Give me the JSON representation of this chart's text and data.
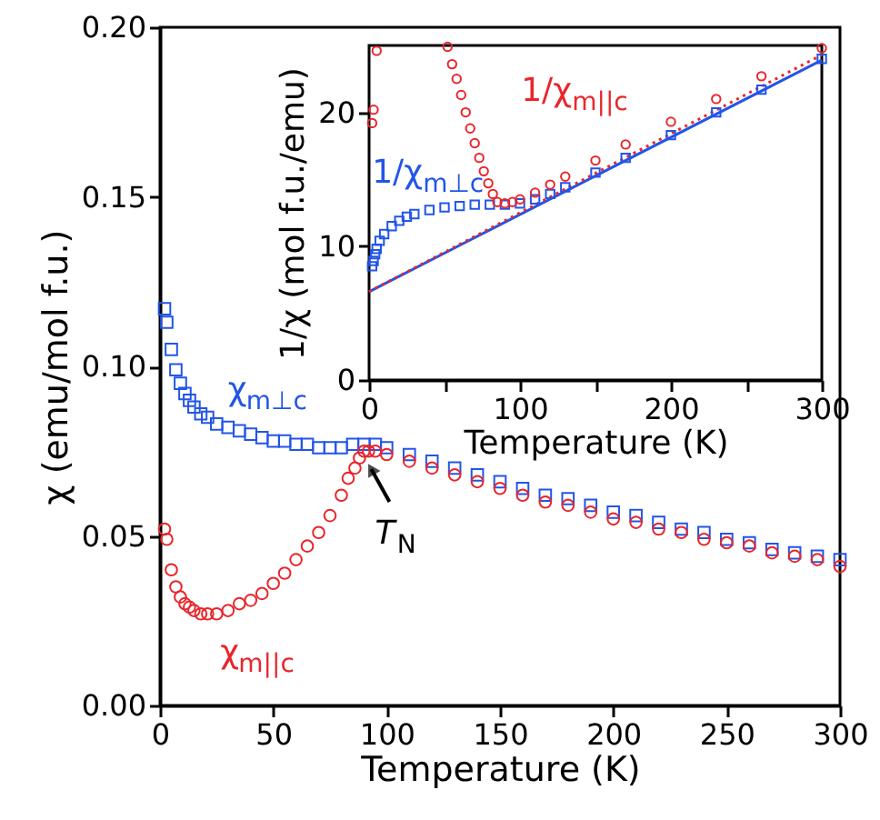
{
  "chart_data": [
    {
      "type": "scatter",
      "xlabel": "Temperature (K)",
      "ylabel": "χ (emu/mol f.u.)",
      "xlim": [
        0,
        300
      ],
      "ylim": [
        0,
        0.2
      ],
      "xticks": [
        0,
        50,
        100,
        150,
        200,
        250,
        300
      ],
      "yticks": [
        {
          "value": 0,
          "label": "0.00"
        },
        {
          "value": 0.05,
          "label": "0.05"
        },
        {
          "value": 0.1,
          "label": "0.10"
        },
        {
          "value": 0.15,
          "label": "0.15"
        },
        {
          "value": 0.2,
          "label": "0.20"
        }
      ],
      "grid": false,
      "legend": false,
      "series": [
        {
          "name": "χ$_{m⊥c}$",
          "color": "#2255e8",
          "marker": "square",
          "x": [
            2,
            3,
            5,
            7,
            9,
            11,
            13,
            15,
            18,
            21,
            25,
            30,
            35,
            40,
            45,
            50,
            55,
            60,
            65,
            70,
            75,
            80,
            85,
            90,
            95,
            100,
            110,
            120,
            130,
            140,
            150,
            160,
            170,
            180,
            190,
            200,
            210,
            220,
            230,
            240,
            250,
            260,
            270,
            280,
            290,
            300
          ],
          "values": [
            0.117,
            0.113,
            0.105,
            0.099,
            0.095,
            0.092,
            0.09,
            0.088,
            0.086,
            0.085,
            0.083,
            0.082,
            0.081,
            0.08,
            0.079,
            0.078,
            0.078,
            0.077,
            0.077,
            0.076,
            0.076,
            0.076,
            0.077,
            0.077,
            0.077,
            0.076,
            0.074,
            0.072,
            0.07,
            0.068,
            0.066,
            0.064,
            0.062,
            0.061,
            0.059,
            0.057,
            0.056,
            0.054,
            0.052,
            0.051,
            0.049,
            0.048,
            0.046,
            0.045,
            0.044,
            0.043
          ]
        },
        {
          "name": "χ$_{m||c}$",
          "color": "#e8262b",
          "marker": "circle",
          "x": [
            2,
            3,
            5,
            7,
            9,
            11,
            13,
            15,
            18,
            21,
            25,
            30,
            35,
            40,
            45,
            50,
            55,
            60,
            65,
            70,
            75,
            80,
            83,
            86,
            88,
            90,
            92,
            95,
            100,
            110,
            120,
            130,
            140,
            150,
            160,
            170,
            180,
            190,
            200,
            210,
            220,
            230,
            240,
            250,
            260,
            270,
            280,
            290,
            300
          ],
          "values": [
            0.052,
            0.049,
            0.04,
            0.035,
            0.032,
            0.03,
            0.029,
            0.028,
            0.027,
            0.027,
            0.027,
            0.028,
            0.03,
            0.031,
            0.033,
            0.036,
            0.039,
            0.043,
            0.047,
            0.051,
            0.056,
            0.062,
            0.067,
            0.07,
            0.073,
            0.075,
            0.075,
            0.075,
            0.074,
            0.072,
            0.07,
            0.068,
            0.066,
            0.064,
            0.062,
            0.06,
            0.059,
            0.057,
            0.055,
            0.054,
            0.052,
            0.051,
            0.049,
            0.048,
            0.047,
            0.045,
            0.044,
            0.043,
            0.041
          ]
        }
      ],
      "annotations": [
        {
          "text": "T$_{N}$",
          "x": 90,
          "y": 0.074
        }
      ]
    },
    {
      "type": "scatter",
      "xlabel": "Temperature (K)",
      "ylabel": "1/χ (mol f.u./emu)",
      "xlim": [
        0,
        300
      ],
      "ylim": [
        0,
        25
      ],
      "xticks": [
        0,
        {
          "value": 50,
          "label": null
        },
        100,
        {
          "value": 150,
          "label": null
        },
        200,
        {
          "value": 250,
          "label": null
        },
        300
      ],
      "yticks": [
        0,
        10,
        20
      ],
      "grid": false,
      "legend": false,
      "series": [
        {
          "type": "line",
          "color": "#2255e8",
          "line_style": "solid",
          "marker": "none",
          "x": [
            0,
            300
          ],
          "values": [
            6.6,
            23.9
          ]
        },
        {
          "type": "line",
          "color": "#e8262b",
          "line_style": "dotted",
          "marker": "none",
          "x": [
            0,
            300
          ],
          "values": [
            6.6,
            24.3
          ]
        },
        {
          "name": "1/χ$_{m⊥c}$",
          "color": "#2255e8",
          "marker": "square",
          "x": [
            2,
            3,
            4,
            5,
            7,
            10,
            15,
            20,
            25,
            30,
            40,
            50,
            60,
            70,
            80,
            90,
            100,
            110,
            120,
            130,
            150,
            170,
            200,
            230,
            260,
            300
          ],
          "values": [
            8.5,
            8.9,
            9.4,
            9.8,
            10.4,
            10.9,
            11.5,
            11.9,
            12.2,
            12.4,
            12.7,
            12.9,
            13.0,
            13.1,
            13.1,
            13.1,
            13.2,
            13.5,
            13.9,
            14.4,
            15.5,
            16.6,
            18.3,
            20.0,
            21.7,
            24.0
          ]
        },
        {
          "name": "1/χ$_{m||c}$",
          "color": "#e8262b",
          "marker": "circle",
          "x": [
            2,
            3,
            5,
            52,
            55,
            58,
            61,
            64,
            67,
            70,
            73,
            76,
            79,
            82,
            85,
            90,
            95,
            100,
            110,
            120,
            130,
            150,
            170,
            200,
            230,
            260,
            300
          ],
          "values": [
            19.2,
            20.2,
            24.6,
            24.9,
            23.6,
            22.5,
            21.3,
            20.0,
            18.8,
            17.7,
            16.6,
            15.6,
            14.7,
            13.9,
            13.3,
            13.2,
            13.3,
            13.5,
            14.0,
            14.6,
            15.2,
            16.4,
            17.6,
            19.3,
            21.0,
            22.7,
            24.8
          ]
        }
      ]
    }
  ]
}
